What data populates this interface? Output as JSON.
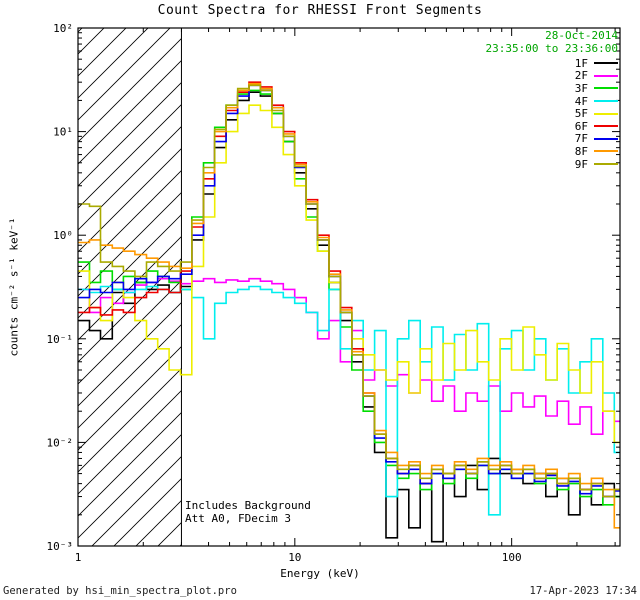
{
  "title": "Count Spectra for RHESSI Front Segments",
  "header": {
    "date": "28-Oct-2014",
    "time_range": "23:35:00 to 23:36:00",
    "color": "#00a500"
  },
  "annotations": [
    "Includes Background",
    "Att A0, FDecim 3"
  ],
  "footer": {
    "left": "Generated by hsi_min_spectra_plot.pro",
    "right": "17-Apr-2023 17:34"
  },
  "chart_data": {
    "type": "line",
    "style": "step-histogram",
    "title": "Count Spectra for RHESSI Front Segments",
    "x_label": "Energy (keV)",
    "y_label": "counts cm⁻² s⁻¹ keV⁻¹",
    "x_scale": "log",
    "y_scale": "log",
    "x_range": [
      1,
      316
    ],
    "y_range": [
      0.001,
      100
    ],
    "grid": false,
    "legend_position": "top-right",
    "hatched_region": {
      "x_start": 1,
      "x_end": 3
    },
    "x_ticks": [
      {
        "value": 1,
        "label": "1"
      },
      {
        "value": 10,
        "label": "10"
      },
      {
        "value": 100,
        "label": "100"
      }
    ],
    "y_ticks": [
      {
        "value": 0.001,
        "label": "10⁻³"
      },
      {
        "value": 0.01,
        "label": "10⁻²"
      },
      {
        "value": 0.1,
        "label": "10⁻¹"
      },
      {
        "value": 1,
        "label": "10⁰"
      },
      {
        "value": 10,
        "label": "10¹"
      },
      {
        "value": 100,
        "label": "10²"
      }
    ],
    "energies": [
      1.0,
      1.13,
      1.27,
      1.44,
      1.62,
      1.83,
      2.07,
      2.33,
      2.63,
      2.97,
      3.35,
      3.79,
      4.27,
      4.82,
      5.45,
      6.15,
      6.94,
      7.84,
      8.85,
      9.99,
      11.28,
      12.73,
      14.37,
      16.22,
      18.31,
      20.67,
      23.33,
      26.33,
      29.73,
      33.56,
      37.88,
      42.76,
      48.27,
      54.49,
      61.51,
      69.43,
      78.38,
      88.48,
      99.88,
      112.75,
      127.28,
      143.68,
      162.19,
      183.09,
      206.68,
      233.31,
      263.38,
      297.32
    ],
    "series": [
      {
        "name": "1F",
        "color": "#000000",
        "values": [
          0.15,
          0.12,
          0.1,
          0.28,
          0.22,
          0.35,
          0.3,
          0.33,
          0.28,
          0.32,
          0.9,
          2.5,
          7,
          13,
          20,
          24,
          22,
          15,
          8,
          4,
          1.8,
          0.8,
          0.35,
          0.15,
          0.06,
          0.022,
          0.008,
          0.0012,
          0.0035,
          0.0015,
          0.004,
          0.0011,
          0.005,
          0.003,
          0.006,
          0.0035,
          0.007,
          0.005,
          0.0055,
          0.004,
          0.005,
          0.003,
          0.0045,
          0.002,
          0.0035,
          0.0025,
          0.004,
          0.003
        ]
      },
      {
        "name": "2F",
        "color": "#ff00ff",
        "values": [
          0.3,
          0.18,
          0.25,
          0.22,
          0.28,
          0.33,
          0.35,
          0.38,
          0.36,
          0.34,
          0.36,
          0.38,
          0.35,
          0.37,
          0.36,
          0.38,
          0.36,
          0.34,
          0.3,
          0.25,
          0.18,
          0.1,
          0.15,
          0.06,
          0.12,
          0.04,
          0.05,
          0.035,
          0.045,
          0.03,
          0.04,
          0.025,
          0.035,
          0.02,
          0.03,
          0.025,
          0.035,
          0.02,
          0.03,
          0.022,
          0.028,
          0.018,
          0.025,
          0.015,
          0.022,
          0.012,
          0.02,
          0.016
        ]
      },
      {
        "name": "3F",
        "color": "#00dd00",
        "values": [
          0.55,
          0.35,
          0.45,
          0.3,
          0.4,
          0.35,
          0.45,
          0.4,
          0.35,
          0.3,
          1.5,
          5,
          11,
          18,
          23,
          25,
          23,
          15,
          8,
          3.5,
          1.5,
          0.7,
          0.3,
          0.13,
          0.05,
          0.02,
          0.01,
          0.006,
          0.0045,
          0.005,
          0.0035,
          0.005,
          0.004,
          0.0055,
          0.0045,
          0.006,
          0.005,
          0.0055,
          0.0045,
          0.005,
          0.004,
          0.0045,
          0.0035,
          0.004,
          0.003,
          0.0035,
          0.0025,
          0.003
        ]
      },
      {
        "name": "4F",
        "color": "#00eeee",
        "values": [
          0.3,
          0.28,
          0.32,
          0.3,
          0.28,
          0.3,
          0.32,
          0.3,
          0.28,
          0.3,
          0.25,
          0.1,
          0.22,
          0.28,
          0.3,
          0.32,
          0.3,
          0.28,
          0.25,
          0.22,
          0.18,
          0.12,
          0.3,
          0.08,
          0.15,
          0.05,
          0.12,
          0.003,
          0.1,
          0.15,
          0.06,
          0.13,
          0.04,
          0.11,
          0.05,
          0.14,
          0.002,
          0.08,
          0.12,
          0.05,
          0.1,
          0.04,
          0.08,
          0.03,
          0.06,
          0.1,
          0.03,
          0.008
        ]
      },
      {
        "name": "5F",
        "color": "#eeee00",
        "values": [
          0.45,
          0.2,
          0.15,
          0.35,
          0.25,
          0.15,
          0.1,
          0.08,
          0.05,
          0.045,
          0.5,
          1.5,
          5,
          10,
          15,
          18,
          16,
          11,
          6,
          3,
          1.4,
          0.7,
          0.35,
          0.18,
          0.1,
          0.07,
          0.05,
          0.04,
          0.06,
          0.03,
          0.08,
          0.04,
          0.09,
          0.05,
          0.12,
          0.06,
          0.04,
          0.1,
          0.05,
          0.13,
          0.07,
          0.04,
          0.09,
          0.05,
          0.03,
          0.06,
          0.02,
          0.01
        ]
      },
      {
        "name": "6F",
        "color": "#ee0000",
        "values": [
          0.18,
          0.2,
          0.17,
          0.19,
          0.18,
          0.25,
          0.28,
          0.3,
          0.28,
          0.45,
          1.2,
          3.5,
          9,
          16,
          24,
          30,
          27,
          18,
          10,
          5,
          2.2,
          1.0,
          0.45,
          0.2,
          0.08,
          0.03,
          0.012,
          0.007,
          0.005,
          0.006,
          0.004,
          0.0055,
          0.0045,
          0.006,
          0.005,
          0.0065,
          0.0055,
          0.006,
          0.005,
          0.0055,
          0.0045,
          0.005,
          0.004,
          0.0045,
          0.0035,
          0.004,
          0.003,
          0.0035
        ]
      },
      {
        "name": "7F",
        "color": "#0000ee",
        "values": [
          0.25,
          0.3,
          0.28,
          0.35,
          0.3,
          0.38,
          0.35,
          0.4,
          0.38,
          0.42,
          1.0,
          3.0,
          8,
          15,
          22,
          28,
          25,
          17,
          9,
          4.5,
          2.0,
          0.9,
          0.4,
          0.18,
          0.07,
          0.028,
          0.011,
          0.0065,
          0.005,
          0.0055,
          0.004,
          0.005,
          0.0045,
          0.0055,
          0.005,
          0.006,
          0.005,
          0.0055,
          0.0045,
          0.005,
          0.0042,
          0.0048,
          0.0038,
          0.0042,
          0.0032,
          0.0038,
          0.003,
          0.0034
        ]
      },
      {
        "name": "8F",
        "color": "#ff9900",
        "values": [
          0.85,
          0.9,
          0.8,
          0.75,
          0.7,
          0.65,
          0.6,
          0.55,
          0.5,
          0.48,
          1.3,
          4,
          10,
          17,
          25,
          29,
          26,
          17,
          9.5,
          4.8,
          2.1,
          0.95,
          0.42,
          0.19,
          0.075,
          0.03,
          0.013,
          0.008,
          0.006,
          0.0065,
          0.005,
          0.006,
          0.005,
          0.0065,
          0.0055,
          0.007,
          0.006,
          0.0065,
          0.0055,
          0.006,
          0.005,
          0.0055,
          0.0045,
          0.005,
          0.004,
          0.0045,
          0.0035,
          0.0015
        ]
      },
      {
        "name": "9F",
        "color": "#aaaa00",
        "values": [
          2.0,
          1.9,
          0.55,
          0.5,
          0.45,
          0.4,
          0.55,
          0.5,
          0.45,
          0.55,
          1.4,
          4.5,
          10.5,
          18,
          26,
          28,
          25,
          16,
          9,
          4.6,
          2.0,
          0.9,
          0.4,
          0.18,
          0.07,
          0.028,
          0.012,
          0.007,
          0.0055,
          0.006,
          0.0045,
          0.0055,
          0.005,
          0.006,
          0.005,
          0.0065,
          0.0055,
          0.006,
          0.005,
          0.0055,
          0.0045,
          0.005,
          0.004,
          0.0045,
          0.0035,
          0.004,
          0.003,
          0.0035
        ]
      }
    ]
  }
}
